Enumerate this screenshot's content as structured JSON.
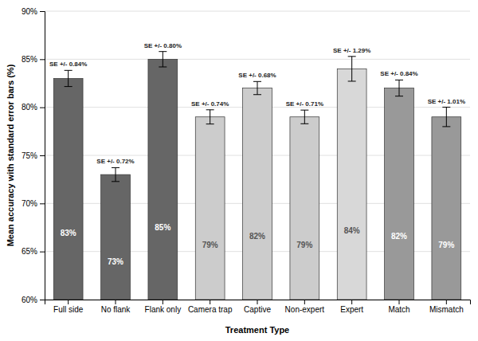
{
  "chart_data": {
    "type": "bar",
    "categories": [
      "Full side",
      "No flank",
      "Flank only",
      "Camera trap",
      "Captive",
      "Non-expert",
      "Expert",
      "Match",
      "Mismatch"
    ],
    "values": [
      83,
      73,
      85,
      79,
      82,
      79,
      84,
      82,
      79
    ],
    "value_labels": [
      "83%",
      "73%",
      "85%",
      "79%",
      "82%",
      "79%",
      "84%",
      "82%",
      "79%"
    ],
    "data_labels": true,
    "se": [
      0.84,
      0.72,
      0.8,
      0.74,
      0.68,
      0.71,
      1.29,
      0.84,
      1.01
    ],
    "se_labels": [
      "SE +/- 0.84%",
      "SE +/- 0.72%",
      "SE +/- 0.80%",
      "SE +/- 0.74%",
      "SE +/- 0.68%",
      "SE +/- 0.71%",
      "SE +/- 1.29%",
      "SE +/- 0.84%",
      "SE +/- 1.01%"
    ],
    "colors": [
      "#666666",
      "#666666",
      "#666666",
      "#cccccc",
      "#cccccc",
      "#cccccc",
      "#d8d8d8",
      "#999999",
      "#999999"
    ],
    "xlabel": "Treatment Type",
    "ylabel": "Mean accuracy with standard error bars (%)",
    "ylim": [
      60,
      90
    ],
    "yticks": [
      {
        "value": 60,
        "label": "60%"
      },
      {
        "value": 65,
        "label": "65%"
      },
      {
        "value": 70,
        "label": "70%"
      },
      {
        "value": 75,
        "label": "75%"
      },
      {
        "value": 80,
        "label": "80%"
      },
      {
        "value": 85,
        "label": "85%"
      },
      {
        "value": 90,
        "label": "90%"
      }
    ],
    "grid": true
  }
}
